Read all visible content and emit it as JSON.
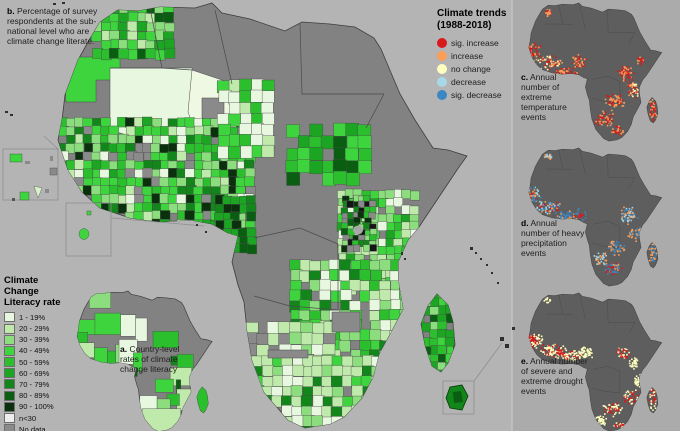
{
  "figure": {
    "caption_b": {
      "prefix": "b.",
      "text": "Percentage of survey respondents at the sub-national level who are climate change literate."
    },
    "caption_a": {
      "prefix": "a.",
      "text": "Country-level rates of climate change literacy"
    },
    "caption_c": {
      "prefix": "c.",
      "text": "Annual number of extreme temperature events"
    },
    "caption_d": {
      "prefix": "d.",
      "text": "Annual number of heavy precipitation events"
    },
    "caption_e": {
      "prefix": "e.",
      "text": "Annual number of severe and extreme drought events"
    }
  },
  "trends_legend": {
    "title_line1": "Climate trends",
    "title_line2": "(1988-2018)",
    "items": [
      {
        "label": "sig. increase",
        "color": "#d7191c"
      },
      {
        "label": "increase",
        "color": "#fa9e58"
      },
      {
        "label": "no change",
        "color": "#ffffbf"
      },
      {
        "label": "decrease",
        "color": "#a6d8e8"
      },
      {
        "label": "sig. decrease",
        "color": "#3a87c4"
      }
    ]
  },
  "literacy_legend": {
    "title_line1": "Climate Change",
    "title_line2": "Literacy rate",
    "items": [
      {
        "label": "1 - 19%",
        "color": "#e8f8e0"
      },
      {
        "label": "20 - 29%",
        "color": "#bfeaab"
      },
      {
        "label": "30 - 39%",
        "color": "#8cdd7d"
      },
      {
        "label": "40 - 49%",
        "color": "#3ed43e"
      },
      {
        "label": "50 - 59%",
        "color": "#2bbf2e"
      },
      {
        "label": "60 - 69%",
        "color": "#1ca423"
      },
      {
        "label": "70 - 79%",
        "color": "#12851b"
      },
      {
        "label": "80 - 89%",
        "color": "#0a5e12"
      },
      {
        "label": "90 - 100%",
        "color": "#0b300d"
      },
      {
        "label": "n<30",
        "color": "#ededed"
      },
      {
        "label": "No data",
        "color": "#8a8a8a"
      }
    ]
  },
  "colors": {
    "ocean": "#b4b4b4",
    "panel_bg": "#ababab",
    "divider": "#c8c8c8",
    "land_nodata": "#828282",
    "land_dark": "#5e5e5e",
    "border": "#4a4a4a",
    "box_stroke": "#8f8f8f",
    "lake": "#a8a8a8",
    "black_cell": "#151515"
  }
}
